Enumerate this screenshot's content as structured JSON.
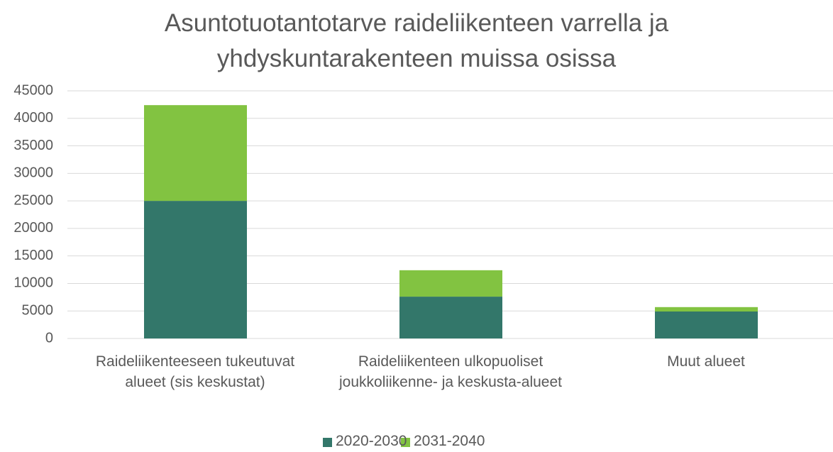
{
  "chart_data": {
    "type": "stacked_bar",
    "title": "Asuntotuotantotarve raideliikenteen varrella ja yhdyskuntarakenteen muissa osissa",
    "categories": [
      "Raideliikenteeseen tukeutuvat alueet (sis keskustat)",
      "Raideliikenteen ulkopuoliset joukkoliikenne- ja keskusta-alueet",
      "Muut alueet"
    ],
    "series": [
      {
        "name": "2020-2030",
        "color": "#33776a",
        "values": [
          25000,
          7600,
          4900
        ]
      },
      {
        "name": "2031-2040",
        "color": "#82c341",
        "values": [
          17400,
          4800,
          800
        ]
      }
    ],
    "ylim": [
      0,
      45000
    ],
    "yticks": [
      0,
      5000,
      10000,
      15000,
      20000,
      25000,
      30000,
      35000,
      40000,
      45000
    ],
    "grid": true,
    "legend": "bottom"
  }
}
